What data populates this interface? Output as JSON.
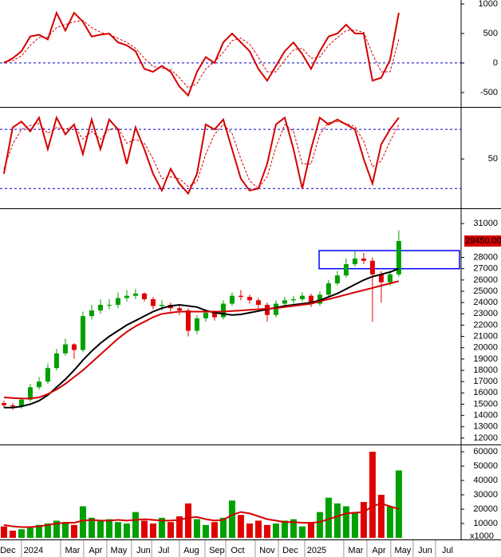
{
  "chart_data": [
    {
      "type": "line",
      "ylim": [
        -745,
        1068
      ],
      "yticks": [
        -500,
        0,
        500,
        1000
      ],
      "levels": [
        0
      ],
      "level_color": "#0000cc",
      "series": [
        {
          "color": "#d40000",
          "dashed": false,
          "values": [
            0,
            80,
            200,
            450,
            480,
            400,
            850,
            550,
            850,
            700,
            450,
            480,
            500,
            350,
            300,
            200,
            -100,
            -150,
            -50,
            -150,
            -400,
            -550,
            -150,
            100,
            0,
            350,
            500,
            350,
            200,
            -100,
            -300,
            -50,
            200,
            350,
            150,
            -100,
            200,
            450,
            500,
            650,
            500,
            500,
            -300,
            -250,
            50,
            850
          ]
        },
        {
          "color": "#d40000",
          "dashed": true,
          "values": [
            20,
            40,
            120,
            300,
            430,
            440,
            600,
            650,
            700,
            720,
            600,
            520,
            480,
            420,
            350,
            250,
            80,
            -60,
            -90,
            -110,
            -250,
            -420,
            -350,
            -100,
            20,
            180,
            380,
            420,
            320,
            100,
            -150,
            -150,
            50,
            220,
            250,
            80,
            100,
            300,
            430,
            550,
            560,
            520,
            150,
            -150,
            -150,
            400
          ]
        }
      ]
    },
    {
      "type": "line",
      "ylim": [
        0,
        102
      ],
      "yticks": [
        50
      ],
      "levels": [
        20,
        80
      ],
      "level_color": "#0000cc",
      "series": [
        {
          "color": "#d40000",
          "dashed": false,
          "values": [
            35,
            82,
            88,
            78,
            92,
            60,
            92,
            75,
            85,
            55,
            90,
            60,
            90,
            80,
            45,
            82,
            60,
            35,
            18,
            40,
            25,
            15,
            35,
            85,
            80,
            90,
            60,
            30,
            18,
            20,
            45,
            85,
            92,
            60,
            20,
            60,
            92,
            85,
            90,
            85,
            80,
            50,
            25,
            65,
            80,
            92
          ]
        },
        {
          "color": "#d40000",
          "dashed": true,
          "values": [
            40,
            65,
            80,
            84,
            86,
            76,
            82,
            80,
            84,
            70,
            78,
            70,
            80,
            82,
            66,
            70,
            66,
            50,
            30,
            32,
            30,
            22,
            27,
            55,
            75,
            85,
            76,
            50,
            28,
            20,
            32,
            62,
            85,
            78,
            45,
            45,
            75,
            87,
            88,
            86,
            83,
            68,
            42,
            48,
            68,
            85
          ]
        }
      ]
    },
    {
      "type": "candlestick",
      "ylim": [
        11430,
        32280
      ],
      "yticks": [
        12000,
        13000,
        14000,
        15000,
        16000,
        17000,
        18000,
        19000,
        20000,
        21000,
        22000,
        23000,
        24000,
        25000,
        26000,
        27000,
        28000,
        31000
      ],
      "up_color": "#00a000",
      "down_color": "#e00000",
      "open": [
        15100,
        14900,
        14800,
        15400,
        16500,
        17000,
        18200,
        19500,
        20300,
        19800,
        22800,
        23300,
        23800,
        23800,
        24400,
        24600,
        24800,
        24300,
        23700,
        23800,
        23500,
        23300,
        21500,
        22600,
        23100,
        22700,
        23900,
        24600,
        24500,
        24200,
        23800,
        22900,
        23900,
        24200,
        24300,
        24600,
        23900,
        24700,
        25700,
        26400,
        27400,
        27900,
        27700,
        26500,
        25800,
        26500
      ],
      "high": [
        15300,
        15100,
        15600,
        16800,
        17400,
        18600,
        19900,
        20800,
        20400,
        23200,
        23800,
        24300,
        24300,
        24900,
        25100,
        25200,
        24900,
        24500,
        24200,
        24000,
        23800,
        23500,
        22900,
        23400,
        23300,
        24200,
        24900,
        25100,
        24700,
        24400,
        24000,
        24200,
        24500,
        24600,
        24900,
        24800,
        25000,
        26000,
        26800,
        27900,
        28600,
        28400,
        28000,
        26800,
        26800,
        30400
      ],
      "low": [
        14700,
        14500,
        14600,
        15200,
        16300,
        16800,
        18000,
        19300,
        19000,
        19600,
        22500,
        23000,
        23400,
        23500,
        24100,
        24300,
        24100,
        23400,
        23300,
        23200,
        22900,
        21000,
        21200,
        22300,
        22400,
        22500,
        23700,
        24200,
        23900,
        23500,
        22300,
        22700,
        23700,
        23900,
        24100,
        23600,
        23700,
        24500,
        25500,
        26200,
        27200,
        27400,
        22300,
        24000,
        25500,
        26300
      ],
      "close": [
        14900,
        14800,
        15400,
        16500,
        17000,
        18200,
        19500,
        20300,
        19800,
        22800,
        23300,
        23800,
        23800,
        24400,
        24600,
        24800,
        24300,
        23700,
        23800,
        23500,
        23300,
        21500,
        22600,
        23100,
        22700,
        23900,
        24600,
        24500,
        24200,
        23800,
        22900,
        23900,
        24200,
        24300,
        24600,
        23900,
        24700,
        25700,
        26400,
        27400,
        27900,
        27700,
        26500,
        25800,
        26500,
        29450
      ],
      "series": [
        {
          "color": "#000000",
          "values": [
            14700,
            14700,
            14800,
            15000,
            15300,
            15800,
            16500,
            17200,
            18000,
            18900,
            19700,
            20400,
            21000,
            21500,
            22000,
            22400,
            22800,
            23200,
            23500,
            23700,
            23800,
            23700,
            23600,
            23300,
            23100,
            23000,
            22900,
            22950,
            23100,
            23250,
            23400,
            23550,
            23700,
            23800,
            23900,
            24000,
            24200,
            24500,
            24800,
            25200,
            25600,
            26000,
            26300,
            26500,
            26700,
            27000
          ]
        },
        {
          "color": "#d40000",
          "values": [
            15600,
            15550,
            15500,
            15500,
            15600,
            15900,
            16300,
            16800,
            17400,
            18000,
            18700,
            19400,
            20100,
            20800,
            21400,
            21900,
            22300,
            22700,
            23000,
            23100,
            23200,
            23200,
            23200,
            23200,
            23200,
            23200,
            23250,
            23300,
            23350,
            23400,
            23450,
            23500,
            23600,
            23700,
            23800,
            23900,
            24100,
            24300,
            24500,
            24700,
            24900,
            25100,
            25300,
            25500,
            25700,
            25900
          ]
        }
      ],
      "zone": [
        27000,
        28600
      ],
      "zone_color": "#0000ff",
      "last": {
        "value": 29450,
        "label": "29450.00"
      }
    },
    {
      "type": "bar",
      "ylim": [
        -1100,
        64500
      ],
      "yticks": [
        10000,
        20000,
        30000,
        40000,
        50000,
        60000
      ],
      "unit_label": "x1000",
      "values": [
        8000,
        5000,
        6000,
        7000,
        9000,
        10000,
        12000,
        11000,
        9000,
        22000,
        14000,
        12000,
        13000,
        11000,
        10000,
        18000,
        12000,
        10000,
        14000,
        11000,
        15000,
        24000,
        13000,
        9000,
        11000,
        14000,
        26000,
        16000,
        10000,
        12000,
        9000,
        10000,
        12000,
        13000,
        8000,
        11000,
        18000,
        28000,
        24000,
        22000,
        18000,
        25000,
        60000,
        30000,
        22000,
        47000
      ],
      "series": [
        {
          "color": "#d40000",
          "values": [
            9000,
            8000,
            7500,
            7500,
            8000,
            9000,
            10000,
            10500,
            10500,
            12000,
            12500,
            12000,
            12000,
            12500,
            12000,
            12500,
            13000,
            12500,
            12000,
            12000,
            12500,
            14000,
            14500,
            13000,
            12000,
            12500,
            16000,
            18000,
            17000,
            15000,
            13000,
            12000,
            11000,
            11000,
            10500,
            10500,
            11000,
            13000,
            15000,
            17000,
            17500,
            18000,
            22000,
            24000,
            22000,
            20000
          ]
        }
      ],
      "xlim": [
        -0.45,
        52.1
      ],
      "xticks": [
        {
          "value": 0.45,
          "label": "Dec"
        },
        {
          "value": 3.36,
          "label": "2024"
        },
        {
          "value": 7.82,
          "label": "Mar"
        },
        {
          "value": 10.45,
          "label": "Apr"
        },
        {
          "value": 13.09,
          "label": "May"
        },
        {
          "value": 15.9,
          "label": "Jun"
        },
        {
          "value": 18.2,
          "label": "Jul"
        },
        {
          "value": 21.36,
          "label": "Aug"
        },
        {
          "value": 24.27,
          "label": "Sep"
        },
        {
          "value": 26.64,
          "label": "Oct"
        },
        {
          "value": 30,
          "label": "Nov"
        },
        {
          "value": 32.64,
          "label": "Dec"
        },
        {
          "value": 35.64,
          "label": "2025"
        },
        {
          "value": 40.09,
          "label": "Mar"
        },
        {
          "value": 42.73,
          "label": "Apr"
        },
        {
          "value": 45.45,
          "label": "May"
        },
        {
          "value": 48,
          "label": "Jun"
        },
        {
          "value": 50.55,
          "label": "Jul"
        }
      ]
    }
  ]
}
